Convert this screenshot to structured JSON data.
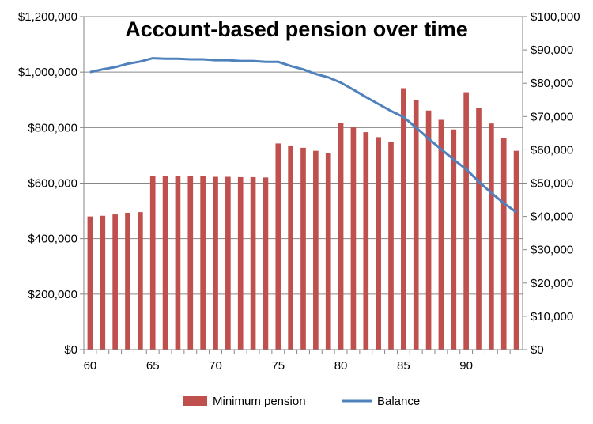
{
  "chart_data": {
    "type": "bar",
    "title": "Account-based pension over time",
    "xlabel": "",
    "ylabel": "",
    "x": [
      60,
      61,
      62,
      63,
      64,
      65,
      66,
      67,
      68,
      69,
      70,
      71,
      72,
      73,
      74,
      75,
      76,
      77,
      78,
      79,
      80,
      81,
      82,
      83,
      84,
      85,
      86,
      87,
      88,
      89,
      90,
      91,
      92,
      93,
      94
    ],
    "x_ticks": [
      "60",
      "65",
      "70",
      "75",
      "80",
      "85",
      "90"
    ],
    "x_tick_values": [
      60,
      65,
      70,
      75,
      80,
      85,
      90
    ],
    "left_axis": {
      "ylim": [
        0,
        1200000
      ],
      "tick_values": [
        0,
        200000,
        400000,
        600000,
        800000,
        1000000,
        1200000
      ],
      "tick_labels": [
        "$0",
        "$200,000",
        "$400,000",
        "$600,000",
        "$800,000",
        "$1,000,000",
        "$1,200,000"
      ]
    },
    "right_axis": {
      "ylim": [
        0,
        100000
      ],
      "tick_values": [
        0,
        10000,
        20000,
        30000,
        40000,
        50000,
        60000,
        70000,
        80000,
        90000,
        100000
      ],
      "tick_labels": [
        "$0",
        "$10,000",
        "$20,000",
        "$30,000",
        "$40,000",
        "$50,000",
        "$60,000",
        "$70,000",
        "$80,000",
        "$90,000",
        "$100,000"
      ]
    },
    "grid": true,
    "legend_position": "bottom",
    "series": [
      {
        "name": "Minimum pension",
        "type": "bar",
        "axis": "right",
        "color": "#C0504D",
        "values": [
          40000,
          40200,
          40600,
          41100,
          41300,
          52200,
          52200,
          52100,
          52100,
          52100,
          51900,
          51900,
          51800,
          51800,
          51700,
          61900,
          61300,
          60600,
          59700,
          59000,
          68000,
          66700,
          65300,
          63800,
          62400,
          78500,
          75000,
          71800,
          69000,
          66100,
          77300,
          72600,
          67900,
          63600,
          59700
        ]
      },
      {
        "name": "Balance",
        "type": "line",
        "axis": "left",
        "color": "#4F81BD",
        "values": [
          1000000,
          1010000,
          1018000,
          1030000,
          1038000,
          1050000,
          1048000,
          1048000,
          1046000,
          1046000,
          1043000,
          1043000,
          1040000,
          1040000,
          1037000,
          1037000,
          1022000,
          1010000,
          993000,
          981000,
          962000,
          937000,
          910000,
          885000,
          860000,
          838000,
          800000,
          760000,
          722000,
          685000,
          650000,
          605000,
          565000,
          528000,
          495000
        ]
      }
    ]
  }
}
